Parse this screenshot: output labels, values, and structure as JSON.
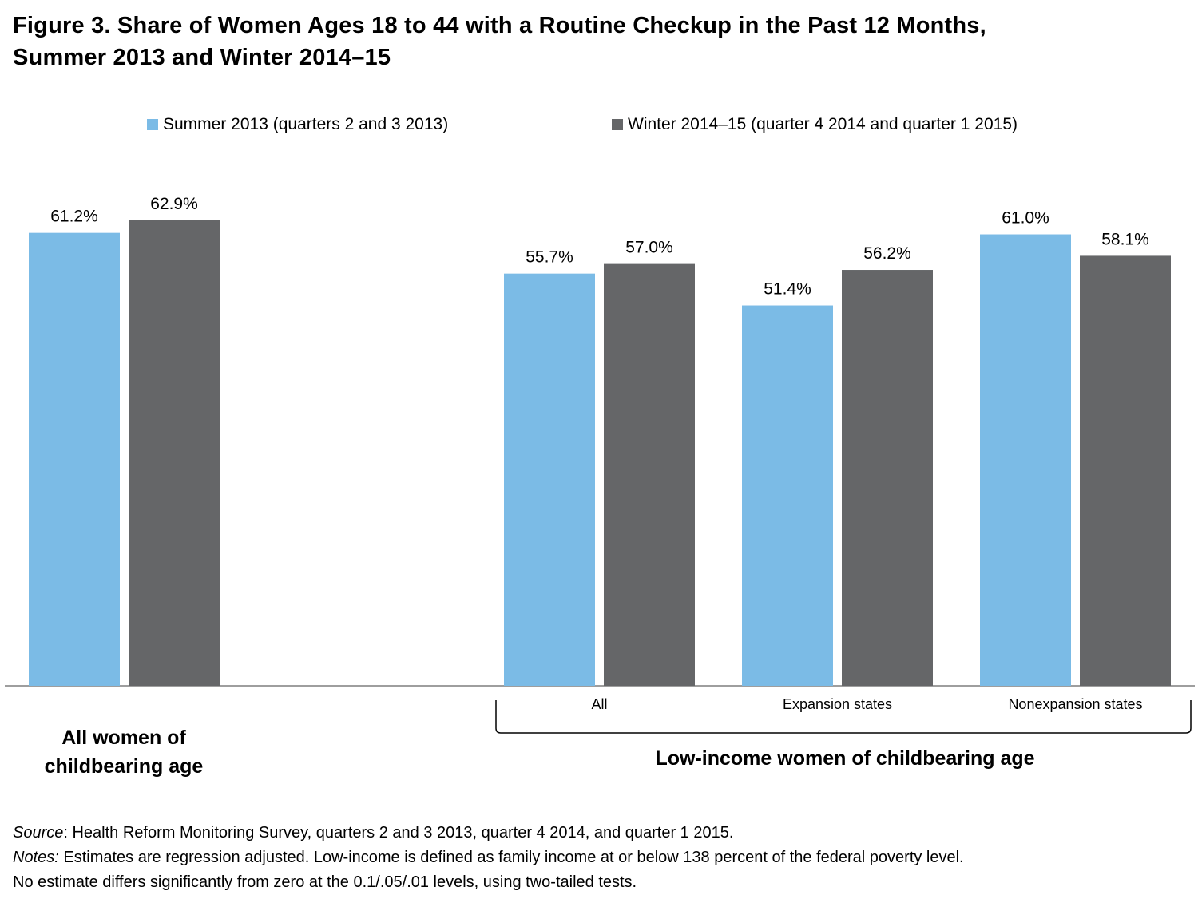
{
  "title_line1": "Figure 3. Share of Women Ages 18 to 44 with a Routine Checkup in the Past 12 Months,",
  "title_line2": "Summer 2013 and Winter 2014–15",
  "colors": {
    "summer": "#7bbbe6",
    "winter": "#656668",
    "axis": "#7f7f7f"
  },
  "chart_data": {
    "type": "bar",
    "title": "Figure 3. Share of Women Ages 18 to 44 with a Routine Checkup in the Past 12 Months, Summer 2013 and Winter 2014–15",
    "categories": [
      "",
      "All",
      "Expansion states",
      "Nonexpansion states"
    ],
    "series": [
      {
        "name": "Summer 2013 (quarters 2 and 3 2013)",
        "values": [
          61.2,
          55.7,
          51.4,
          61.0
        ],
        "labels": [
          "61.2%",
          "55.7%",
          "51.4%",
          "61.0%"
        ]
      },
      {
        "name": "Winter 2014–15 (quarter 4 2014 and quarter 1 2015)",
        "values": [
          62.9,
          57.0,
          56.2,
          58.1
        ],
        "labels": [
          "62.9%",
          "57.0%",
          "56.2%",
          "58.1%"
        ]
      }
    ],
    "groups": [
      "All women of childbearing age",
      "Low-income women of childbearing age"
    ],
    "ylim": [
      0,
      100
    ],
    "grid": false,
    "legend_position": "top"
  },
  "group_labels": {
    "all_women_line1": "All women of",
    "all_women_line2": "childbearing age",
    "low_income": "Low-income women of childbearing age"
  },
  "footnotes": {
    "source_label": "Source",
    "source_text": ": Health Reform Monitoring Survey, quarters 2 and 3 2013, quarter 4 2014, and quarter 1 2015.",
    "notes_label": "Notes:",
    "notes_text": " Estimates are regression adjusted.  Low-income is defined as family income at or below 138 percent of the federal poverty level.",
    "notes_line2": "No estimate differs significantly from zero at the 0.1/.05/.01 levels, using two-tailed tests."
  }
}
